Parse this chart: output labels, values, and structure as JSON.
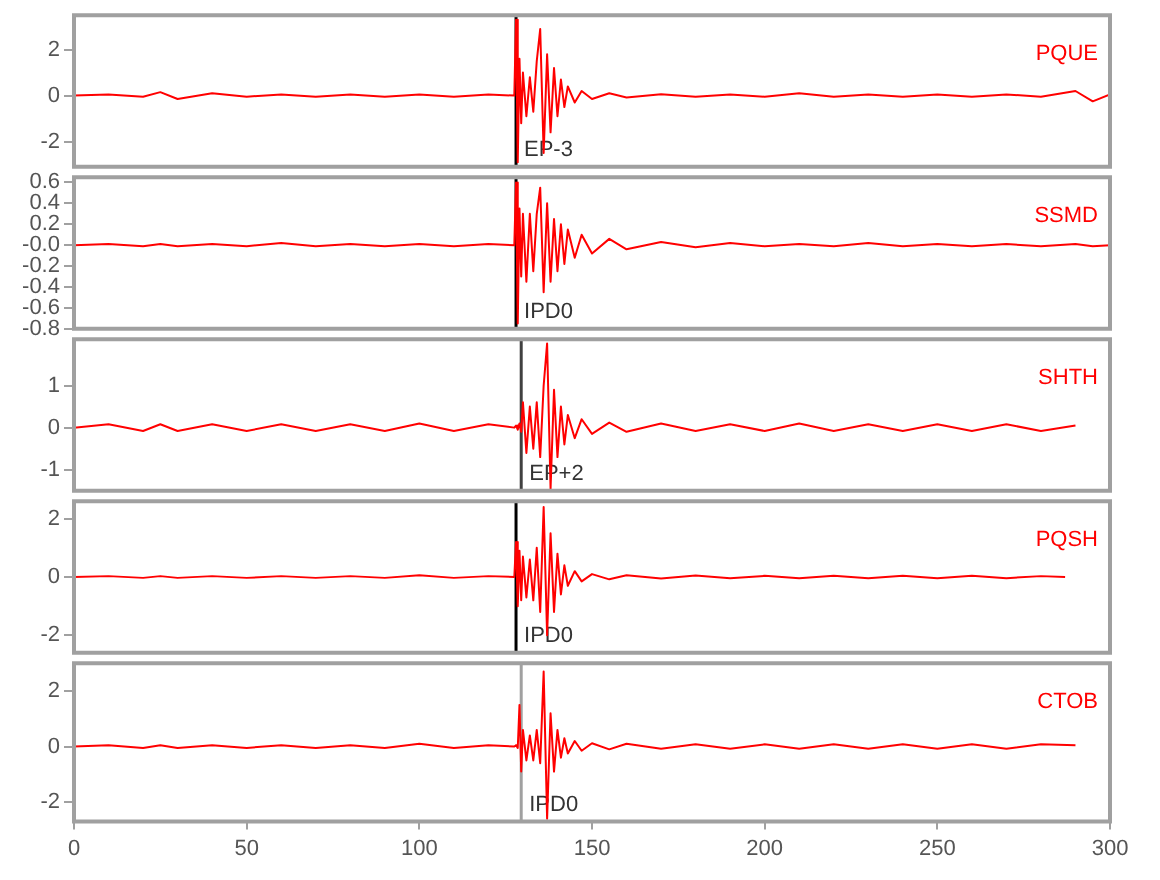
{
  "chart_data": [
    {
      "type": "line",
      "xlim": [
        0,
        300
      ],
      "xticks": [
        0,
        50,
        100,
        150,
        200,
        250,
        300
      ],
      "ylim": [
        -3.1,
        3.5
      ],
      "yticks": [
        -2,
        0,
        2
      ],
      "tick_labels": "y",
      "ref_lines": [
        {
          "axis": "x",
          "value": 128,
          "label": "EP-3",
          "color": "#000000"
        }
      ],
      "series": [
        {
          "name": "PQUE",
          "color": "#ff0000",
          "x": [
            0,
            10,
            20,
            25,
            30,
            40,
            50,
            60,
            70,
            80,
            90,
            100,
            110,
            120,
            127.5,
            128,
            128.5,
            129,
            129.5,
            130,
            131,
            132,
            133,
            134,
            135,
            136,
            137,
            138,
            139,
            140,
            141,
            142,
            143,
            145,
            147,
            150,
            155,
            160,
            170,
            180,
            190,
            200,
            210,
            220,
            230,
            240,
            250,
            260,
            270,
            280,
            290,
            295,
            300
          ],
          "values": [
            0,
            0.05,
            -0.05,
            0.15,
            -0.15,
            0.1,
            -0.05,
            0.05,
            -0.05,
            0.05,
            -0.05,
            0.05,
            -0.05,
            0.05,
            0,
            3.3,
            -2.9,
            1.6,
            -1.2,
            1.0,
            -0.9,
            0.8,
            -0.7,
            1.5,
            2.9,
            -2.5,
            1.8,
            -1.6,
            1.2,
            -0.9,
            0.7,
            -0.5,
            0.4,
            -0.3,
            0.2,
            -0.15,
            0.1,
            -0.08,
            0.06,
            -0.05,
            0.05,
            -0.05,
            0.1,
            -0.05,
            0.05,
            -0.05,
            0.05,
            -0.05,
            0.05,
            -0.05,
            0.2,
            -0.25,
            0.05
          ]
        }
      ]
    },
    {
      "type": "line",
      "xlim": [
        0,
        300
      ],
      "xticks": [
        0,
        50,
        100,
        150,
        200,
        250,
        300
      ],
      "ylim": [
        -0.8,
        0.65
      ],
      "yticks": [
        {
          "value": -0.8,
          "label": "-0.8"
        },
        {
          "value": -0.6,
          "label": "-0.6"
        },
        {
          "value": -0.4,
          "label": "-0.4"
        },
        {
          "value": -0.2,
          "label": "-0.2"
        },
        {
          "value": 0,
          "label": "-0.0"
        },
        {
          "value": 0.2,
          "label": "0.2"
        },
        {
          "value": 0.4,
          "label": "0.4"
        },
        {
          "value": 0.6,
          "label": "0.6"
        }
      ],
      "tick_labels": "y",
      "ref_lines": [
        {
          "axis": "x",
          "value": 128,
          "label": "IPD0",
          "color": "#000000"
        }
      ],
      "series": [
        {
          "name": "SSMD",
          "color": "#ff0000",
          "x": [
            0,
            10,
            20,
            25,
            30,
            40,
            50,
            60,
            70,
            80,
            90,
            100,
            110,
            120,
            127.5,
            128,
            128.5,
            129,
            129.5,
            130,
            131,
            132,
            133,
            134,
            135,
            136,
            137,
            138,
            139,
            140,
            141,
            142,
            143,
            145,
            147,
            150,
            155,
            160,
            170,
            180,
            190,
            200,
            210,
            220,
            230,
            240,
            250,
            260,
            270,
            280,
            290,
            295,
            300
          ],
          "values": [
            0,
            0.01,
            -0.01,
            0.01,
            -0.01,
            0.01,
            -0.01,
            0.02,
            -0.01,
            0.01,
            -0.01,
            0.01,
            -0.01,
            0.01,
            0,
            0.6,
            -0.75,
            0.35,
            -0.3,
            0.3,
            -0.35,
            0.3,
            -0.25,
            0.3,
            0.55,
            -0.45,
            0.4,
            -0.35,
            0.25,
            -0.25,
            0.2,
            -0.18,
            0.15,
            -0.12,
            0.1,
            -0.08,
            0.06,
            -0.04,
            0.03,
            -0.02,
            0.02,
            -0.01,
            0.01,
            -0.01,
            0.02,
            -0.01,
            0.01,
            -0.01,
            0.01,
            -0.01,
            0.01,
            -0.01,
            0
          ]
        }
      ]
    },
    {
      "type": "line",
      "xlim": [
        0,
        300
      ],
      "xticks": [
        0,
        50,
        100,
        150,
        200,
        250,
        300
      ],
      "ylim": [
        -1.5,
        2.1
      ],
      "yticks": [
        -1,
        0,
        1
      ],
      "tick_labels": "y",
      "ref_lines": [
        {
          "axis": "x",
          "value": 129.5,
          "label": "EP+2",
          "color": "#404040"
        }
      ],
      "series": [
        {
          "name": "SHTH",
          "color": "#ff0000",
          "x": [
            0,
            10,
            20,
            25,
            30,
            40,
            50,
            60,
            70,
            80,
            90,
            100,
            110,
            120,
            127.5,
            128,
            128.5,
            129,
            129.5,
            130,
            131,
            132,
            133,
            134,
            135,
            136,
            137,
            138,
            139,
            140,
            141,
            142,
            143,
            145,
            147,
            150,
            155,
            160,
            170,
            180,
            190,
            200,
            210,
            220,
            230,
            240,
            250,
            260,
            270,
            280,
            290
          ],
          "values": [
            0,
            0.08,
            -0.08,
            0.08,
            -0.08,
            0.08,
            -0.08,
            0.08,
            -0.08,
            0.08,
            -0.08,
            0.1,
            -0.08,
            0.08,
            0,
            0.05,
            -0.05,
            0.1,
            -0.1,
            0.6,
            -0.6,
            0.5,
            -0.5,
            0.6,
            -0.7,
            1.0,
            2.0,
            -1.45,
            0.9,
            -0.7,
            0.5,
            -0.4,
            0.3,
            -0.25,
            0.2,
            -0.15,
            0.12,
            -0.1,
            0.1,
            -0.08,
            0.08,
            -0.08,
            0.1,
            -0.08,
            0.08,
            -0.08,
            0.08,
            -0.08,
            0.08,
            -0.08,
            0.05
          ]
        }
      ]
    },
    {
      "type": "line",
      "xlim": [
        0,
        300
      ],
      "xticks": [
        0,
        50,
        100,
        150,
        200,
        250,
        300
      ],
      "ylim": [
        -2.6,
        2.6
      ],
      "yticks": [
        -2,
        0,
        2
      ],
      "tick_labels": "y",
      "ref_lines": [
        {
          "axis": "x",
          "value": 128,
          "label": "IPD0",
          "color": "#000000"
        }
      ],
      "series": [
        {
          "name": "PQSH",
          "color": "#ff0000",
          "x": [
            0,
            10,
            20,
            25,
            30,
            40,
            50,
            60,
            70,
            80,
            90,
            100,
            110,
            120,
            127.5,
            128,
            128.5,
            129,
            129.5,
            130,
            131,
            132,
            133,
            134,
            135,
            136,
            137,
            138,
            139,
            140,
            141,
            142,
            143,
            145,
            147,
            150,
            155,
            160,
            170,
            180,
            190,
            200,
            210,
            220,
            230,
            240,
            250,
            260,
            270,
            280,
            287
          ],
          "values": [
            0,
            0.03,
            -0.03,
            0.03,
            -0.03,
            0.03,
            -0.03,
            0.03,
            -0.03,
            0.03,
            -0.03,
            0.06,
            -0.03,
            0.03,
            0,
            1.2,
            -1.0,
            0.9,
            -0.8,
            0.7,
            -0.7,
            0.6,
            -0.8,
            1.0,
            -1.2,
            2.4,
            -2.0,
            1.5,
            -1.2,
            0.8,
            -0.6,
            0.4,
            -0.3,
            0.2,
            -0.15,
            0.1,
            -0.08,
            0.06,
            -0.05,
            0.05,
            -0.04,
            0.04,
            -0.04,
            0.04,
            -0.04,
            0.04,
            -0.04,
            0.04,
            -0.04,
            0.03,
            0
          ]
        }
      ]
    },
    {
      "type": "line",
      "xlim": [
        0,
        300
      ],
      "xticks": [
        0,
        50,
        100,
        150,
        200,
        250,
        300
      ],
      "ylim": [
        -2.7,
        3.0
      ],
      "yticks": [
        -2,
        0,
        2
      ],
      "ref_lines": [
        {
          "axis": "x",
          "value": 129.5,
          "label": "IPD0",
          "color": "#a0a0a0"
        }
      ],
      "series": [
        {
          "name": "CTOB",
          "color": "#ff0000",
          "x": [
            0,
            10,
            20,
            25,
            30,
            40,
            50,
            60,
            70,
            80,
            90,
            100,
            110,
            120,
            127.5,
            128,
            128.5,
            129,
            129.5,
            130,
            131,
            132,
            133,
            134,
            135,
            136,
            137,
            138,
            139,
            140,
            141,
            142,
            143,
            145,
            147,
            150,
            155,
            160,
            170,
            180,
            190,
            200,
            210,
            220,
            230,
            240,
            250,
            260,
            270,
            280,
            290
          ],
          "values": [
            0,
            0.05,
            -0.05,
            0.05,
            -0.05,
            0.05,
            -0.05,
            0.05,
            -0.05,
            0.05,
            -0.05,
            0.1,
            -0.05,
            0.05,
            0,
            0.05,
            -0.05,
            1.5,
            -0.9,
            0.6,
            -0.5,
            0.4,
            -0.5,
            0.6,
            -0.6,
            2.7,
            -2.6,
            1.2,
            -0.9,
            0.6,
            -0.4,
            0.3,
            -0.25,
            0.2,
            -0.15,
            0.12,
            -0.1,
            0.1,
            -0.08,
            0.08,
            -0.08,
            0.08,
            -0.08,
            0.08,
            -0.08,
            0.08,
            -0.08,
            0.08,
            -0.08,
            0.08,
            0.05
          ]
        }
      ]
    }
  ]
}
